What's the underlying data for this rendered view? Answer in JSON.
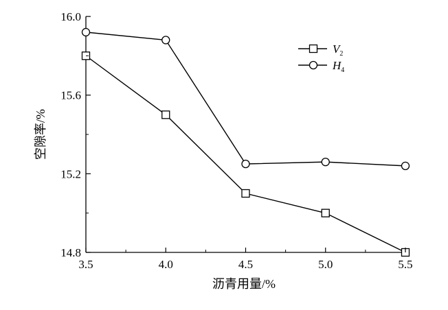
{
  "chart_data": {
    "type": "line",
    "title": "",
    "xlabel": "沥青用量/%",
    "ylabel": "空隙率/%",
    "x": [
      3.5,
      4.0,
      4.5,
      5.0,
      5.5
    ],
    "x_tick_labels": [
      "3.5",
      "4.0",
      "4.5",
      "5.0",
      "5.5"
    ],
    "xlim": [
      3.5,
      5.5
    ],
    "y_ticks": [
      14.8,
      15.2,
      15.6,
      16.0
    ],
    "y_tick_labels": [
      "14.8",
      "15.2",
      "15.6",
      "16.0"
    ],
    "ylim": [
      14.8,
      16.0
    ],
    "grid": false,
    "legend_position": "top-right",
    "series": [
      {
        "name": "V",
        "name_subscript": "2",
        "marker": "square",
        "values": [
          15.8,
          15.5,
          15.1,
          15.0,
          14.8
        ]
      },
      {
        "name": "H",
        "name_subscript": "4",
        "marker": "circle",
        "values": [
          15.92,
          15.88,
          15.25,
          15.26,
          15.24
        ]
      }
    ]
  }
}
